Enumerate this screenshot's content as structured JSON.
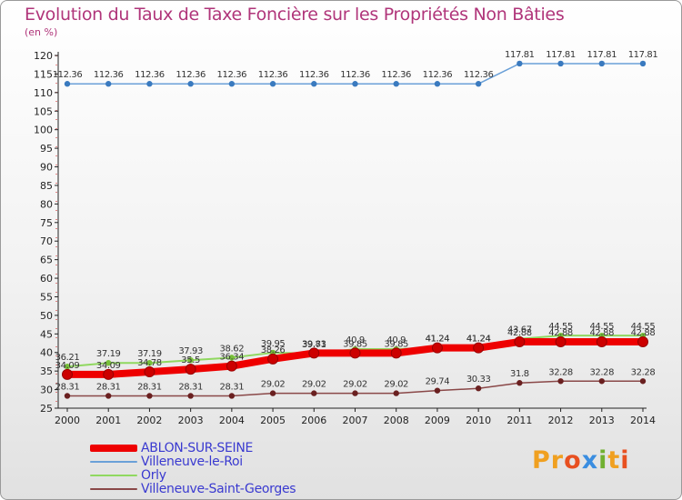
{
  "colors": {
    "title": "#b0357a",
    "axis": "#222222",
    "grid": "#dddddd",
    "tick_red": "#d01818"
  },
  "brand": {
    "letters": [
      "P",
      "r",
      "o",
      "x",
      "i",
      "t",
      "i"
    ],
    "colors": [
      "#f0a020",
      "#f0a020",
      "#e85020",
      "#3a8de0",
      "#70b030",
      "#f0a020",
      "#e85020"
    ]
  },
  "chart_data": {
    "type": "line",
    "title": "Evolution du Taux de Taxe Foncière sur les Propriétés Non Bâties",
    "ylabel": "(en %)",
    "xlabel": "",
    "ylim": [
      25,
      120
    ],
    "yticks": [
      25,
      30,
      35,
      40,
      45,
      50,
      55,
      60,
      65,
      70,
      75,
      80,
      85,
      90,
      95,
      100,
      105,
      110,
      115,
      120
    ],
    "categories": [
      "2000",
      "2001",
      "2002",
      "2003",
      "2004",
      "2005",
      "2006",
      "2007",
      "2008",
      "2009",
      "2010",
      "2011",
      "2012",
      "2013",
      "2014"
    ],
    "series": [
      {
        "name": "Villeneuve-le-Roi",
        "color": "#6aa0d8",
        "marker": "#3a7abf",
        "width": 1.5,
        "values": [
          112.36,
          112.36,
          112.36,
          112.36,
          112.36,
          112.36,
          112.36,
          112.36,
          112.36,
          112.36,
          112.36,
          117.81,
          117.81,
          117.81,
          117.81
        ],
        "labels": [
          "112.36",
          "112.36",
          "112.36",
          "112.36",
          "112.36",
          "112.36",
          "112.36",
          "112.36",
          "112.36",
          "112.36",
          "112.36",
          "117.81",
          "117.81",
          "117.81",
          "117.81"
        ]
      },
      {
        "name": "Villeneuve-Saint-Georges",
        "color": "#8a4848",
        "marker": "#6a2020",
        "width": 1.5,
        "values": [
          28.31,
          28.31,
          28.31,
          28.31,
          28.31,
          29.02,
          29.02,
          29.02,
          29.02,
          29.74,
          30.33,
          31.8,
          32.28,
          32.28,
          32.28
        ],
        "labels": [
          "28.31",
          "28.31",
          "28.31",
          "28.31",
          "28.31",
          "29.02",
          "29.02",
          "29.02",
          "29.02",
          "29.74",
          "30.33",
          "31.8",
          "32.28",
          "32.28",
          "32.28"
        ]
      },
      {
        "name": "Orly",
        "color": "#90d860",
        "marker": "#78c03a",
        "width": 2,
        "values": [
          36.21,
          37.19,
          37.19,
          37.93,
          38.62,
          39.95,
          39.71,
          40.9,
          40.9,
          41.24,
          41.24,
          43.67,
          44.55,
          44.55,
          44.55
        ],
        "labels": [
          "36.21",
          "37.19",
          "37.19",
          "37.93",
          "38.62",
          "39.95",
          "39.71",
          "40.9",
          "40.9",
          "41.24",
          "41.24",
          "43.67",
          "44.55",
          "44.55",
          "44.55"
        ]
      },
      {
        "name": "ABLON-SUR-SEINE",
        "color": "#ee0000",
        "marker": "#cc0000",
        "width": 8,
        "values": [
          34.09,
          34.09,
          34.78,
          35.5,
          36.34,
          38.26,
          39.83,
          39.85,
          39.85,
          41.24,
          41.24,
          42.88,
          42.88,
          42.88,
          42.88
        ],
        "labels": [
          "34.09",
          "34.09",
          "34.78",
          "35.5",
          "36.34",
          "38.26",
          "39.83",
          "39.85",
          "39.85",
          "41.24",
          "41.24",
          "42.88",
          "42.88",
          "42.88",
          "42.88"
        ]
      }
    ],
    "legend": [
      {
        "name": "ABLON-SUR-SEINE",
        "color": "#ee0000",
        "thickness": 8
      },
      {
        "name": "Villeneuve-le-Roi",
        "color": "#6aa0d8",
        "thickness": 2
      },
      {
        "name": "Orly",
        "color": "#90d860",
        "thickness": 2
      },
      {
        "name": "Villeneuve-Saint-Georges",
        "color": "#8a4848",
        "thickness": 2
      }
    ],
    "legend_position": "bottom-left",
    "grid": false
  }
}
